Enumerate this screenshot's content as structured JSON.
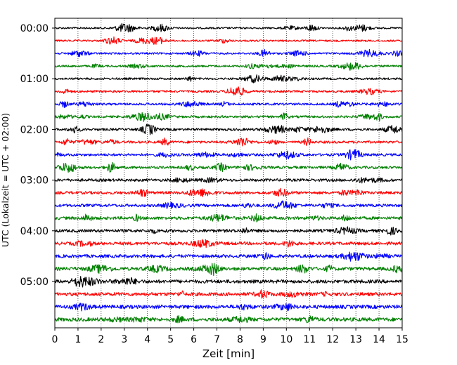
{
  "chart_data": {
    "type": "line",
    "title": "",
    "xlabel": "Zeit  [min]",
    "ylabel": "UTC (Lokalzeit = UTC + 02:00)",
    "xlim": [
      0,
      15
    ],
    "x_ticks": [
      "0",
      "1",
      "2",
      "3",
      "4",
      "5",
      "6",
      "7",
      "8",
      "9",
      "10",
      "11",
      "12",
      "13",
      "14",
      "15"
    ],
    "y_ticks": [
      {
        "label": "00:00",
        "row": 0
      },
      {
        "label": "01:00",
        "row": 4
      },
      {
        "label": "02:00",
        "row": 8
      },
      {
        "label": "03:00",
        "row": 12
      },
      {
        "label": "04:00",
        "row": 16
      },
      {
        "label": "05:00",
        "row": 20
      }
    ],
    "trace_minutes": 15,
    "trace_count": 24,
    "trace_colors": [
      "#000000",
      "#ff0000",
      "#0000ff",
      "#008000"
    ],
    "x_grid": "dotted",
    "y_grid": false,
    "legend": "none"
  }
}
